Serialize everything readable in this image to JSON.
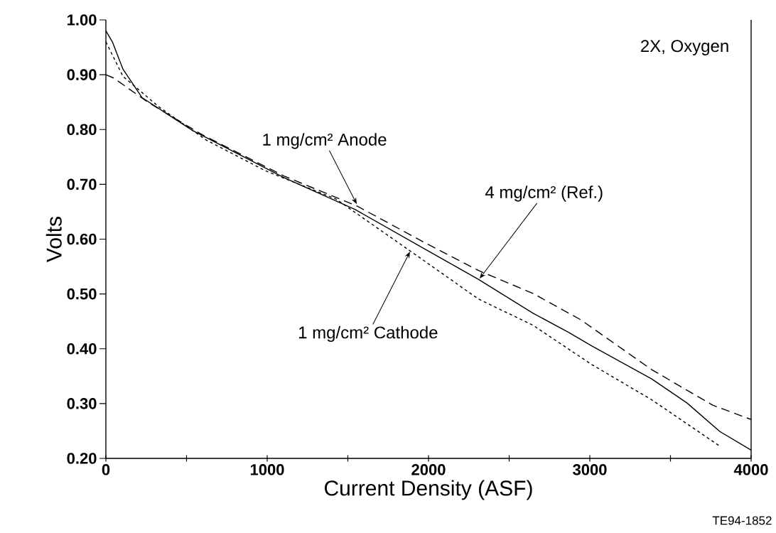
{
  "chart_data": {
    "type": "line",
    "xlabel": "Current Density (ASF)",
    "ylabel": "Volts",
    "xlim": [
      0,
      4000
    ],
    "ylim": [
      0.2,
      1.0
    ],
    "xticks": [
      0,
      {
        "value": 500,
        "label": null
      },
      1000,
      {
        "value": 1500,
        "label": null
      },
      2000,
      {
        "value": 2500,
        "label": null
      },
      3000,
      {
        "value": 3500,
        "label": null
      },
      4000
    ],
    "yticks": [
      {
        "value": 0.2,
        "label": "0.20"
      },
      {
        "value": 0.3,
        "label": "0.30"
      },
      {
        "value": 0.4,
        "label": "0.40"
      },
      {
        "value": 0.5,
        "label": "0.50"
      },
      {
        "value": 0.6,
        "label": "0.60"
      },
      {
        "value": 0.7,
        "label": "0.70"
      },
      {
        "value": 0.8,
        "label": "0.80"
      },
      {
        "value": 0.9,
        "label": "0.90"
      },
      {
        "value": 1.0,
        "label": "1.00"
      }
    ],
    "grid": false,
    "marker": "none",
    "series": [
      {
        "color": "#000000",
        "line_style": "solid",
        "x": [
          0,
          40,
          106,
          225,
          533,
          1106,
          1546,
          2000,
          2308,
          2647,
          2868,
          3013,
          3383,
          3603,
          3806,
          4000
        ],
        "values": [
          0.98,
          0.96,
          0.91,
          0.858,
          0.799,
          0.712,
          0.654,
          0.578,
          0.527,
          0.465,
          0.43,
          0.405,
          0.345,
          0.301,
          0.249,
          0.215
        ]
      },
      {
        "color": "#000000",
        "line_style": "dashed",
        "x": [
          0,
          48,
          255,
          400,
          600,
          1106,
          1559,
          2000,
          2308,
          2647,
          2943,
          3383,
          3762,
          4000
        ],
        "values": [
          0.9,
          0.894,
          0.851,
          0.825,
          0.79,
          0.715,
          0.66,
          0.59,
          0.543,
          0.501,
          0.453,
          0.362,
          0.297,
          0.271
        ]
      },
      {
        "color": "#000000",
        "line_style": "dotted",
        "x": [
          0,
          106,
          326,
          621,
          987,
          1427,
          2000,
          2308,
          2647,
          3013,
          3383,
          3802
        ],
        "values": [
          0.96,
          0.897,
          0.842,
          0.781,
          0.725,
          0.673,
          0.555,
          0.491,
          0.443,
          0.371,
          0.307,
          0.223
        ]
      }
    ],
    "annotations": [
      "2X, Oxygen",
      {
        "text": "1 mg/cm² Anode",
        "x": 1555,
        "y": 0.664
      },
      {
        "text": "4 mg/cm² (Ref.)",
        "x": 2317,
        "y": 0.528
      },
      {
        "text": "1 mg/cm² Cathode",
        "x": 1885,
        "y": 0.577
      },
      "TE94-1852"
    ]
  }
}
